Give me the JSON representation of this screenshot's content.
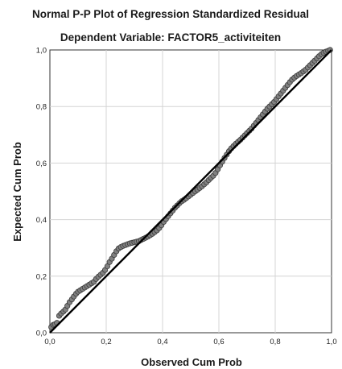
{
  "chart_data": {
    "type": "scatter",
    "title": "Normal P-P Plot of Regression Standardized Residual",
    "subtitle": "Dependent Variable: FACTOR5_activiteiten",
    "xlabel": "Observed Cum Prob",
    "ylabel": "Expected Cum Prob",
    "xlim": [
      0,
      1
    ],
    "ylim": [
      0,
      1
    ],
    "x_ticks": [
      0,
      0.2,
      0.4,
      0.6,
      0.8,
      1.0
    ],
    "y_ticks": [
      0,
      0.2,
      0.4,
      0.6,
      0.8,
      1.0
    ],
    "x_tick_labels": [
      "0,0",
      "0,2",
      "0,4",
      "0,6",
      "0,8",
      "1,0"
    ],
    "y_tick_labels": [
      "0,0",
      "0,2",
      "0,4",
      "0,6",
      "0,8",
      "1,0"
    ],
    "grid": true,
    "reference_line": {
      "from": [
        0,
        0
      ],
      "to": [
        1,
        1
      ],
      "color": "#000000"
    },
    "point_color": "#808080",
    "series": [
      {
        "x": [
          0.005,
          0.012,
          0.018,
          0.025,
          0.033,
          0.04,
          0.048,
          0.055,
          0.062,
          0.07,
          0.078,
          0.085,
          0.093,
          0.1,
          0.108,
          0.116,
          0.124,
          0.132,
          0.14,
          0.148,
          0.156,
          0.164,
          0.172,
          0.18,
          0.188,
          0.196,
          0.204,
          0.212,
          0.22,
          0.228,
          0.236,
          0.244,
          0.252,
          0.26,
          0.268,
          0.276,
          0.284,
          0.292,
          0.3,
          0.308,
          0.316,
          0.324,
          0.332,
          0.34,
          0.348,
          0.356,
          0.364,
          0.372,
          0.38,
          0.388,
          0.396,
          0.404,
          0.412,
          0.42,
          0.428,
          0.436,
          0.444,
          0.452,
          0.46,
          0.468,
          0.476,
          0.484,
          0.492,
          0.5,
          0.508,
          0.516,
          0.524,
          0.532,
          0.54,
          0.548,
          0.556,
          0.564,
          0.572,
          0.58,
          0.588,
          0.596,
          0.604,
          0.612,
          0.62,
          0.628,
          0.636,
          0.644,
          0.652,
          0.66,
          0.668,
          0.676,
          0.684,
          0.692,
          0.7,
          0.708,
          0.716,
          0.724,
          0.732,
          0.74,
          0.748,
          0.756,
          0.764,
          0.772,
          0.78,
          0.788,
          0.796,
          0.804,
          0.812,
          0.82,
          0.828,
          0.836,
          0.844,
          0.852,
          0.86,
          0.868,
          0.876,
          0.884,
          0.892,
          0.9,
          0.908,
          0.916,
          0.924,
          0.932,
          0.94,
          0.948,
          0.956,
          0.964,
          0.972,
          0.98,
          0.988,
          0.995
        ],
        "y": [
          0.02,
          0.028,
          0.03,
          0.035,
          0.06,
          0.068,
          0.075,
          0.082,
          0.095,
          0.108,
          0.118,
          0.128,
          0.138,
          0.145,
          0.15,
          0.155,
          0.16,
          0.165,
          0.17,
          0.175,
          0.18,
          0.19,
          0.198,
          0.205,
          0.212,
          0.222,
          0.235,
          0.25,
          0.262,
          0.275,
          0.288,
          0.298,
          0.303,
          0.307,
          0.31,
          0.313,
          0.316,
          0.318,
          0.32,
          0.322,
          0.324,
          0.328,
          0.332,
          0.336,
          0.34,
          0.345,
          0.35,
          0.356,
          0.362,
          0.37,
          0.38,
          0.392,
          0.402,
          0.412,
          0.422,
          0.432,
          0.442,
          0.45,
          0.458,
          0.465,
          0.47,
          0.476,
          0.482,
          0.488,
          0.494,
          0.5,
          0.506,
          0.512,
          0.518,
          0.525,
          0.532,
          0.54,
          0.548,
          0.555,
          0.565,
          0.578,
          0.592,
          0.605,
          0.618,
          0.63,
          0.642,
          0.652,
          0.66,
          0.668,
          0.675,
          0.682,
          0.69,
          0.698,
          0.706,
          0.714,
          0.722,
          0.732,
          0.742,
          0.752,
          0.762,
          0.772,
          0.782,
          0.792,
          0.8,
          0.808,
          0.816,
          0.826,
          0.836,
          0.846,
          0.856,
          0.866,
          0.876,
          0.886,
          0.895,
          0.902,
          0.908,
          0.913,
          0.918,
          0.924,
          0.93,
          0.938,
          0.946,
          0.954,
          0.962,
          0.97,
          0.978,
          0.985,
          0.99,
          0.994,
          0.997,
          1.0
        ]
      }
    ]
  }
}
